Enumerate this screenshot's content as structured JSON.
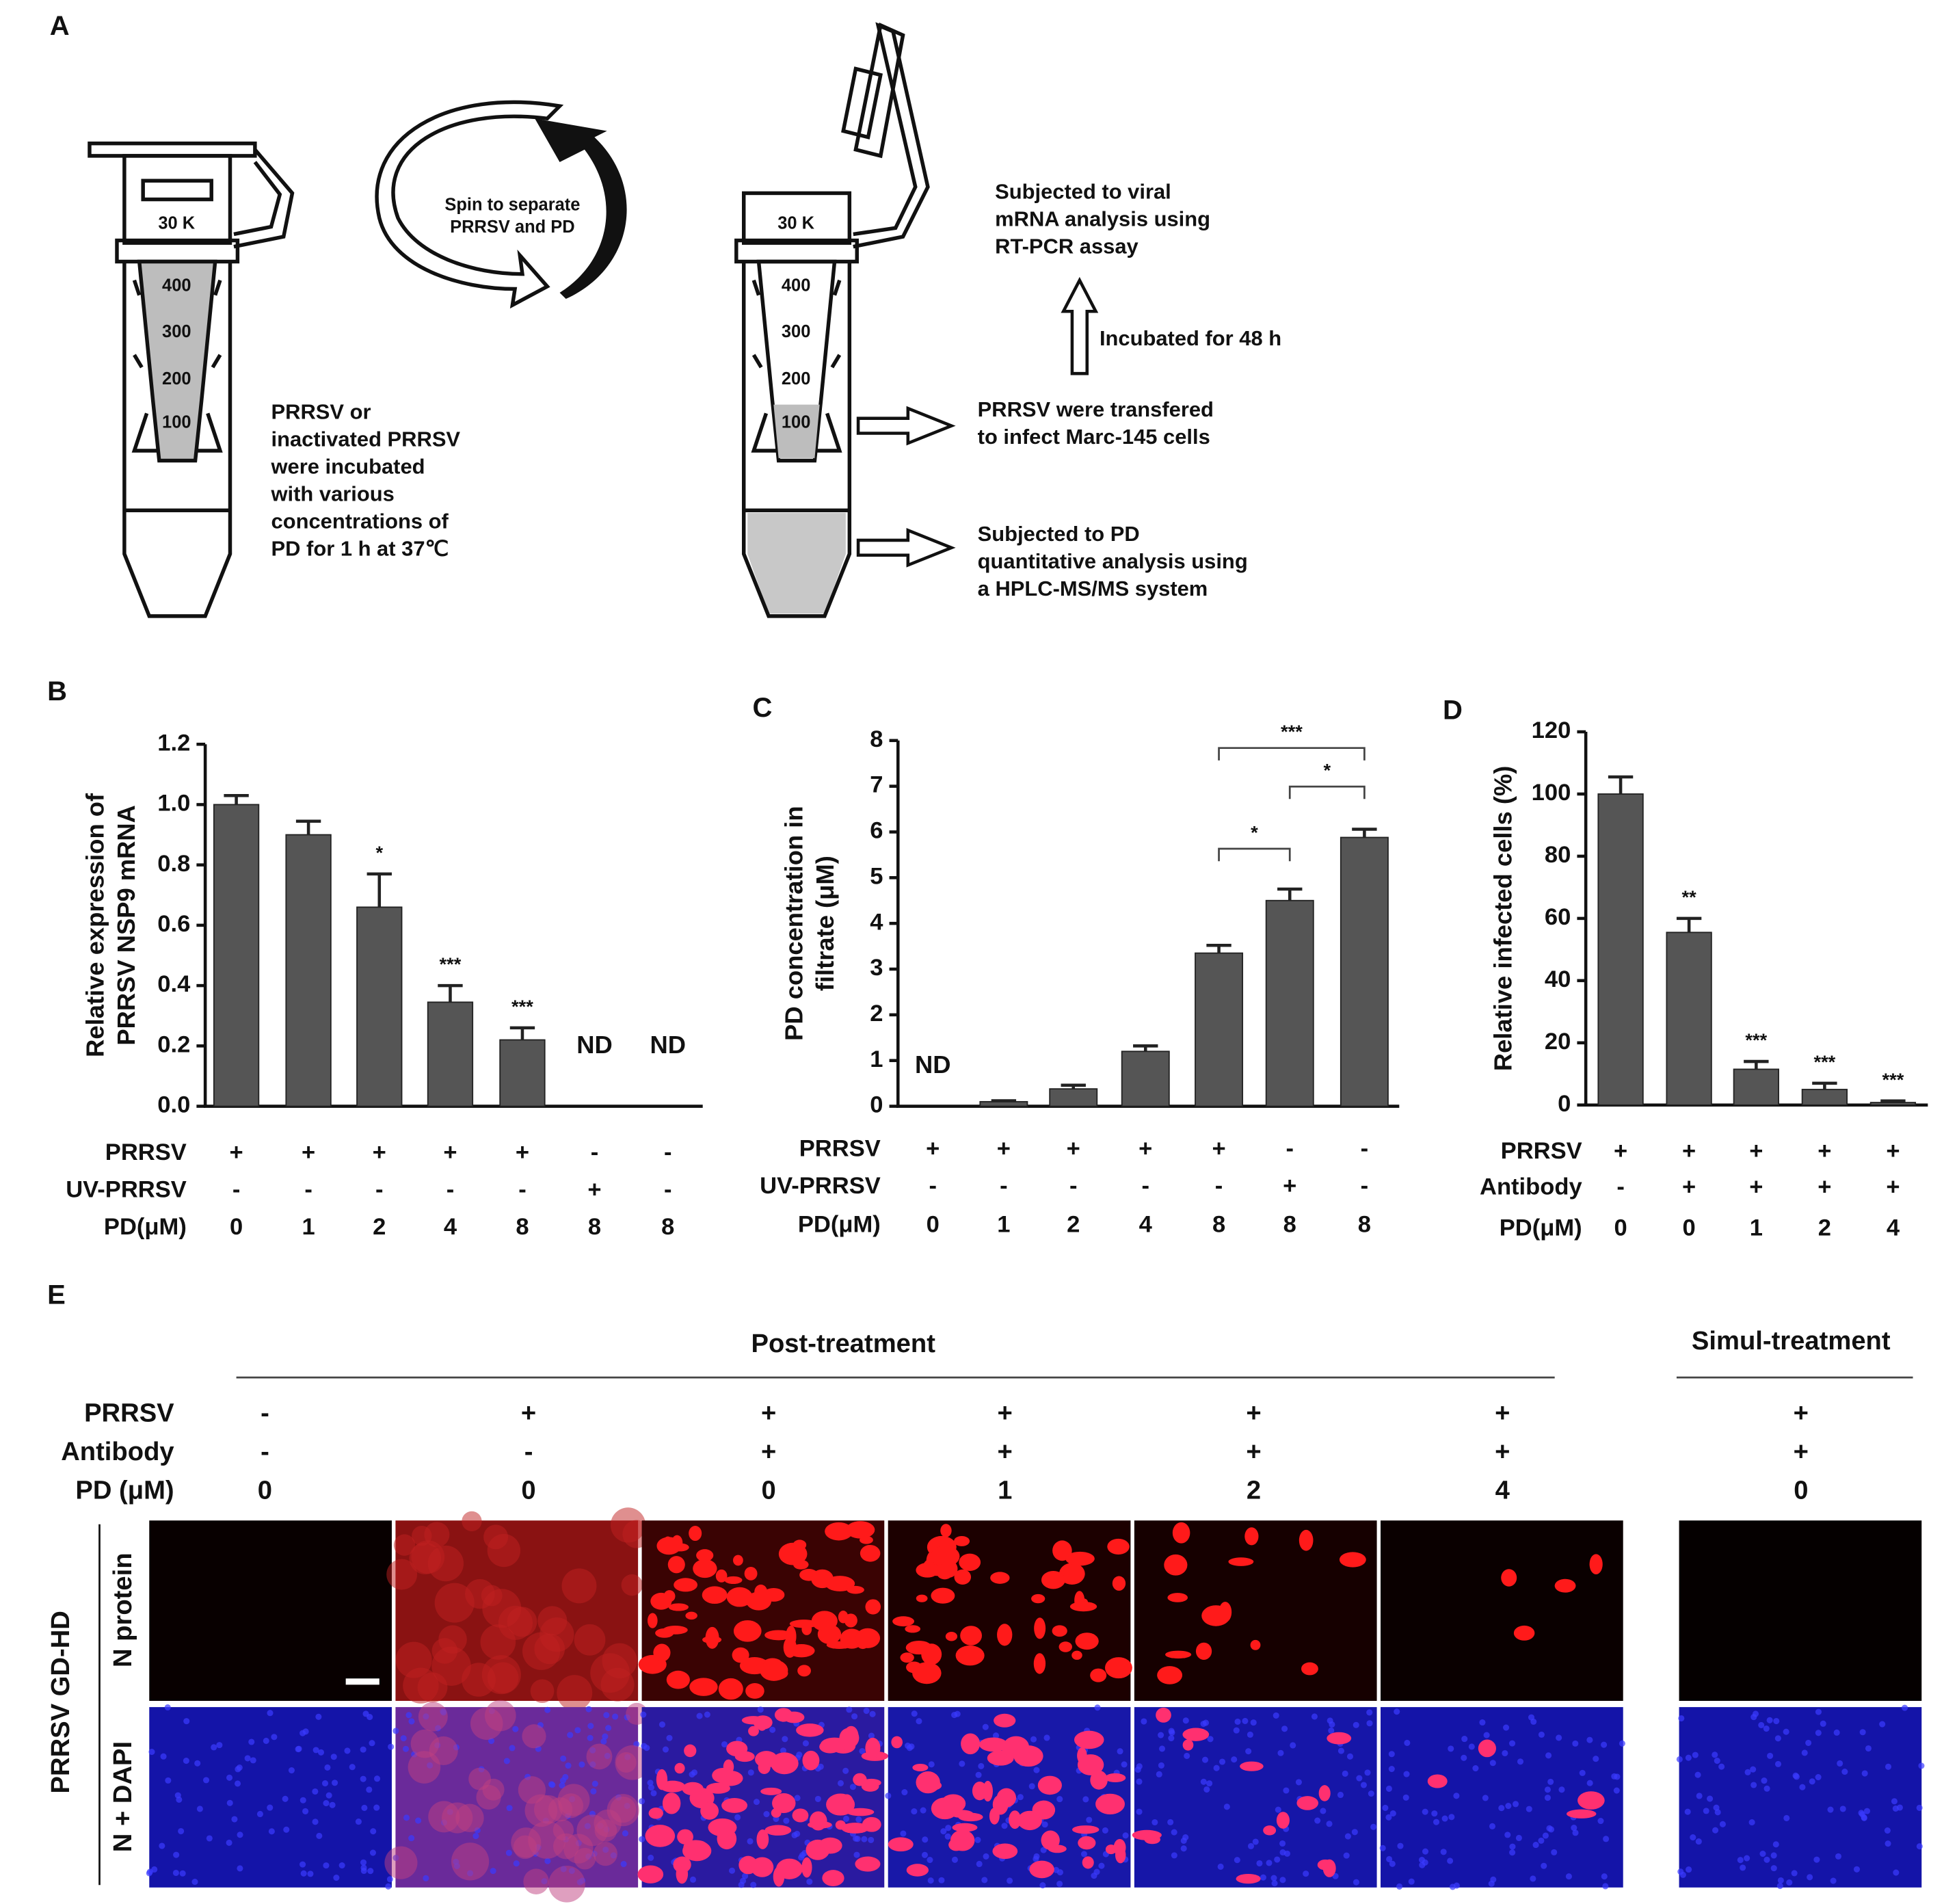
{
  "panel_labels": [
    "A",
    "B",
    "C",
    "D",
    "E"
  ],
  "panel_a": {
    "tube_left": {
      "cap_label": "30 K",
      "marks": [
        "400",
        "300",
        "200",
        "100"
      ]
    },
    "tube_right": {
      "cap_label": "30 K",
      "marks": [
        "400",
        "300",
        "200",
        "100"
      ]
    },
    "spin_label": [
      "Spin to separate",
      "PRRSV and PD"
    ],
    "left_note": [
      "PRRSV or",
      "inactivated PRRSV",
      "were incubated",
      "with various",
      "concentrations of",
      "PD for 1 h at 37℃"
    ],
    "rtpcr_note": [
      "Subjected to viral",
      "mRNA analysis using",
      "RT-PCR assay"
    ],
    "incubated": "Incubated for 48 h",
    "transfer_note": [
      "PRRSV were transfered",
      "to infect Marc-145 cells"
    ],
    "pd_note": [
      "Subjected to PD",
      "quantitative analysis using",
      "a HPLC-MS/MS system"
    ]
  },
  "chart_data": [
    {
      "type": "bar",
      "y_label": [
        "Relative expression of",
        "PRRSV NSP9 mRNA"
      ],
      "color": "#555555",
      "values": [
        1.0,
        0.9,
        0.66,
        0.345,
        0.22,
        null,
        null
      ],
      "errors": [
        0.03,
        0.045,
        0.11,
        0.055,
        0.04,
        null,
        null
      ],
      "annotations": [
        null,
        null,
        "*",
        "***",
        "***",
        "ND",
        "ND"
      ],
      "ylim": [
        0,
        1.2
      ],
      "yticks": [
        {
          "value": 0,
          "label": "0.0"
        },
        0.2,
        0.4,
        0.6,
        0.8,
        {
          "value": 1,
          "label": "1.0"
        },
        1.2
      ],
      "conditions": [
        {
          "name": "PRRSV",
          "values": [
            "+",
            "+",
            "+",
            "+",
            "+",
            "-",
            "-"
          ]
        },
        {
          "name": "UV-PRRSV",
          "values": [
            "-",
            "-",
            "-",
            "-",
            "-",
            "+",
            "-"
          ]
        },
        {
          "name": "PD(μM)",
          "values": [
            "0",
            "1",
            "2",
            "4",
            "8",
            "8",
            "8"
          ]
        }
      ]
    },
    {
      "type": "bar",
      "y_label": [
        "PD concentration in",
        "filtrate (μM)"
      ],
      "color": "#555555",
      "values": [
        null,
        0.1,
        0.38,
        1.2,
        3.35,
        4.5,
        5.88
      ],
      "errors": [
        null,
        0.02,
        0.08,
        0.12,
        0.17,
        0.25,
        0.18
      ],
      "annotations": [
        "ND",
        null,
        null,
        null,
        null,
        null,
        null
      ],
      "brackets": [
        {
          "from": 4,
          "to": 5,
          "text": "*"
        },
        {
          "from": 5,
          "to": 6,
          "text": "*"
        },
        {
          "from": 4,
          "to": 6,
          "text": "***"
        }
      ],
      "ylim": [
        0,
        8
      ],
      "yticks": [
        0,
        1,
        2,
        3,
        4,
        5,
        6,
        7,
        8
      ],
      "conditions": [
        {
          "name": "PRRSV",
          "values": [
            "+",
            "+",
            "+",
            "+",
            "+",
            "-",
            "-"
          ]
        },
        {
          "name": "UV-PRRSV",
          "values": [
            "-",
            "-",
            "-",
            "-",
            "-",
            "+",
            "-"
          ]
        },
        {
          "name": "PD(μM)",
          "values": [
            "0",
            "1",
            "2",
            "4",
            "8",
            "8",
            "8"
          ]
        }
      ]
    },
    {
      "type": "bar",
      "y_label": [
        "Relative infected cells (%)"
      ],
      "color": "#555555",
      "values": [
        100,
        55.5,
        11.5,
        5,
        0.8
      ],
      "errors": [
        5.5,
        4.5,
        2.5,
        2,
        0.5
      ],
      "annotations": [
        null,
        "**",
        "***",
        "***",
        "***"
      ],
      "ylim": [
        0,
        120
      ],
      "yticks": [
        0,
        20,
        40,
        60,
        80,
        100,
        120
      ],
      "conditions": [
        {
          "name": "PRRSV",
          "values": [
            "+",
            "+",
            "+",
            "+",
            "+"
          ]
        },
        {
          "name": "Antibody",
          "values": [
            "-",
            "+",
            "+",
            "+",
            "+"
          ]
        },
        {
          "name": "PD(μM)",
          "values": [
            "0",
            "0",
            "1",
            "2",
            "4"
          ]
        }
      ]
    }
  ],
  "panel_e": {
    "groups": [
      "Post-treatment",
      "Simul-treatment"
    ],
    "conditions": [
      {
        "name": "PRRSV",
        "values": [
          "-",
          "+",
          "+",
          "+",
          "+",
          "+",
          "+"
        ]
      },
      {
        "name": "Antibody",
        "values": [
          "-",
          "-",
          "+",
          "+",
          "+",
          "+",
          "+"
        ]
      },
      {
        "name": "PD (μM)",
        "values": [
          "0",
          "0",
          "0",
          "1",
          "2",
          "4",
          "0"
        ]
      }
    ],
    "strain": "PRRSV GD-HD",
    "rows": [
      "N protein",
      "N + DAPI"
    ]
  }
}
